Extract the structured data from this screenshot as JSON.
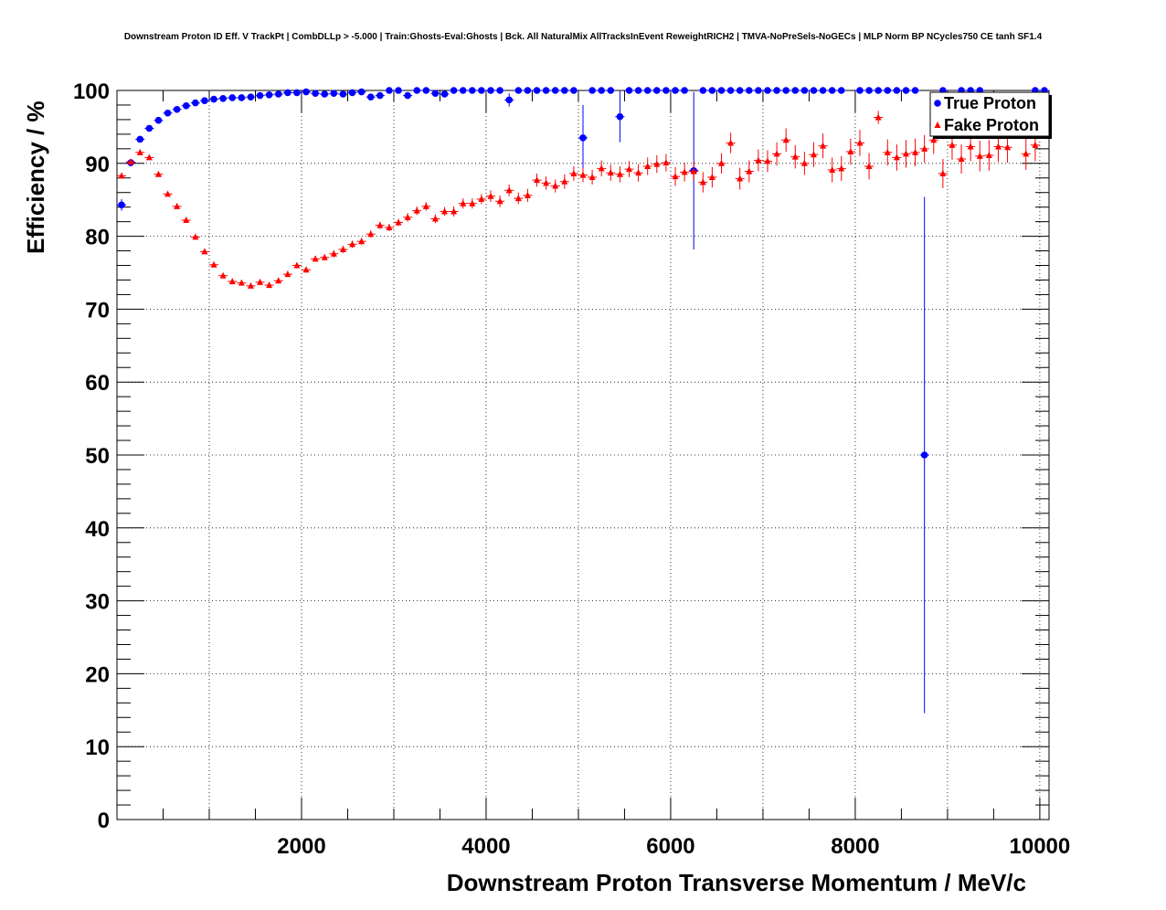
{
  "chart_data": {
    "type": "scatter",
    "title": "Downstream Proton ID Eff. V TrackPt | CombDLLp > -5.000 | Train:Ghosts-Eval:Ghosts | Bck. All NaturalMix AllTracksInEvent ReweightRICH2 | TMVA-NoPreSels-NoGECs | MLP Norm BP NCycles750 CE tanh SF1.4",
    "xlabel": "Downstream Proton Transverse Momentum / MeV/c",
    "ylabel": "Efficiency / %",
    "xlim": [
      0,
      10100
    ],
    "ylim": [
      0,
      100
    ],
    "x_ticks": [
      2000,
      4000,
      6000,
      8000,
      10000
    ],
    "y_ticks": [
      0,
      10,
      20,
      30,
      40,
      50,
      60,
      70,
      80,
      90,
      100
    ],
    "grid": true,
    "legend_position": "top-right",
    "series": [
      {
        "name": "True Proton",
        "color": "#0000ff",
        "marker": "circle",
        "points": [
          {
            "x": 50,
            "y": 84.3,
            "err": 0.8
          },
          {
            "x": 150,
            "y": 90.1,
            "err": 0.5
          },
          {
            "x": 250,
            "y": 93.3,
            "err": 0.4
          },
          {
            "x": 350,
            "y": 94.8,
            "err": 0.3
          },
          {
            "x": 450,
            "y": 95.9,
            "err": 0.3
          },
          {
            "x": 550,
            "y": 96.9,
            "err": 0.3
          },
          {
            "x": 650,
            "y": 97.4,
            "err": 0.3
          },
          {
            "x": 750,
            "y": 97.9,
            "err": 0.3
          },
          {
            "x": 850,
            "y": 98.3,
            "err": 0.2
          },
          {
            "x": 950,
            "y": 98.6,
            "err": 0.2
          },
          {
            "x": 1050,
            "y": 98.8,
            "err": 0.2
          },
          {
            "x": 1150,
            "y": 98.9,
            "err": 0.2
          },
          {
            "x": 1250,
            "y": 99.0,
            "err": 0.2
          },
          {
            "x": 1350,
            "y": 99.0,
            "err": 0.2
          },
          {
            "x": 1450,
            "y": 99.1,
            "err": 0.2
          },
          {
            "x": 1550,
            "y": 99.3,
            "err": 0.2
          },
          {
            "x": 1650,
            "y": 99.4,
            "err": 0.2
          },
          {
            "x": 1750,
            "y": 99.5,
            "err": 0.2
          },
          {
            "x": 1850,
            "y": 99.7,
            "err": 0.2
          },
          {
            "x": 1950,
            "y": 99.7,
            "err": 0.2
          },
          {
            "x": 2050,
            "y": 99.8,
            "err": 0.2
          },
          {
            "x": 2150,
            "y": 99.6,
            "err": 0.2
          },
          {
            "x": 2250,
            "y": 99.5,
            "err": 0.2
          },
          {
            "x": 2350,
            "y": 99.6,
            "err": 0.2
          },
          {
            "x": 2450,
            "y": 99.5,
            "err": 0.2
          },
          {
            "x": 2550,
            "y": 99.7,
            "err": 0.2
          },
          {
            "x": 2650,
            "y": 99.8,
            "err": 0.2
          },
          {
            "x": 2750,
            "y": 99.1,
            "err": 0.3
          },
          {
            "x": 2850,
            "y": 99.3,
            "err": 0.3
          },
          {
            "x": 2950,
            "y": 100.0,
            "err": 0.0
          },
          {
            "x": 3050,
            "y": 100.0,
            "err": 0.0
          },
          {
            "x": 3150,
            "y": 99.3,
            "err": 0.3
          },
          {
            "x": 3250,
            "y": 100.0,
            "err": 0.0
          },
          {
            "x": 3350,
            "y": 100.0,
            "err": 0.0
          },
          {
            "x": 3450,
            "y": 99.6,
            "err": 0.3
          },
          {
            "x": 3550,
            "y": 99.5,
            "err": 0.3
          },
          {
            "x": 3650,
            "y": 100.0,
            "err": 0.0
          },
          {
            "x": 3750,
            "y": 100.0,
            "err": 0.0
          },
          {
            "x": 3850,
            "y": 100.0,
            "err": 0.0
          },
          {
            "x": 3950,
            "y": 100.0,
            "err": 0.0
          },
          {
            "x": 4050,
            "y": 100.0,
            "err": 0.0
          },
          {
            "x": 4150,
            "y": 100.0,
            "err": 0.0
          },
          {
            "x": 4250,
            "y": 98.7,
            "err": 0.9
          },
          {
            "x": 4350,
            "y": 100.0,
            "err": 0.0
          },
          {
            "x": 4450,
            "y": 100.0,
            "err": 0.0
          },
          {
            "x": 4550,
            "y": 100.0,
            "err": 0.0
          },
          {
            "x": 4650,
            "y": 100.0,
            "err": 0.0
          },
          {
            "x": 4750,
            "y": 100.0,
            "err": 0.0
          },
          {
            "x": 4850,
            "y": 100.0,
            "err": 0.0
          },
          {
            "x": 4950,
            "y": 100.0,
            "err": 0.0
          },
          {
            "x": 5050,
            "y": 93.5,
            "err": 4.5
          },
          {
            "x": 5150,
            "y": 100.0,
            "err": 0.0
          },
          {
            "x": 5250,
            "y": 100.0,
            "err": 0.0
          },
          {
            "x": 5350,
            "y": 100.0,
            "err": 0.0
          },
          {
            "x": 5450,
            "y": 96.4,
            "err": 3.5
          },
          {
            "x": 5550,
            "y": 100.0,
            "err": 0.0
          },
          {
            "x": 5650,
            "y": 100.0,
            "err": 0.0
          },
          {
            "x": 5750,
            "y": 100.0,
            "err": 0.0
          },
          {
            "x": 5850,
            "y": 100.0,
            "err": 0.0
          },
          {
            "x": 5950,
            "y": 100.0,
            "err": 0.0
          },
          {
            "x": 6050,
            "y": 100.0,
            "err": 0.0
          },
          {
            "x": 6150,
            "y": 100.0,
            "err": 0.0
          },
          {
            "x": 6250,
            "y": 89.0,
            "err": 10.8
          },
          {
            "x": 6350,
            "y": 100.0,
            "err": 0.0
          },
          {
            "x": 6450,
            "y": 100.0,
            "err": 0.0
          },
          {
            "x": 6550,
            "y": 100.0,
            "err": 0.0
          },
          {
            "x": 6650,
            "y": 100.0,
            "err": 0.0
          },
          {
            "x": 6750,
            "y": 100.0,
            "err": 0.0
          },
          {
            "x": 6850,
            "y": 100.0,
            "err": 0.0
          },
          {
            "x": 6950,
            "y": 100.0,
            "err": 0.0
          },
          {
            "x": 7050,
            "y": 100.0,
            "err": 0.0
          },
          {
            "x": 7150,
            "y": 100.0,
            "err": 0.0
          },
          {
            "x": 7250,
            "y": 100.0,
            "err": 0.0
          },
          {
            "x": 7350,
            "y": 100.0,
            "err": 0.0
          },
          {
            "x": 7450,
            "y": 100.0,
            "err": 0.0
          },
          {
            "x": 7550,
            "y": 100.0,
            "err": 0.0
          },
          {
            "x": 7650,
            "y": 100.0,
            "err": 0.0
          },
          {
            "x": 7750,
            "y": 100.0,
            "err": 0.0
          },
          {
            "x": 7850,
            "y": 100.0,
            "err": 0.0
          },
          {
            "x": 8050,
            "y": 100.0,
            "err": 0.0
          },
          {
            "x": 8150,
            "y": 100.0,
            "err": 0.0
          },
          {
            "x": 8250,
            "y": 100.0,
            "err": 0.0
          },
          {
            "x": 8350,
            "y": 100.0,
            "err": 0.0
          },
          {
            "x": 8450,
            "y": 100.0,
            "err": 0.0
          },
          {
            "x": 8550,
            "y": 100.0,
            "err": 0.0
          },
          {
            "x": 8650,
            "y": 100.0,
            "err": 0.0
          },
          {
            "x": 8750,
            "y": 50.0,
            "err": 35.4
          },
          {
            "x": 8950,
            "y": 100.0,
            "err": 0.0
          },
          {
            "x": 9150,
            "y": 100.0,
            "err": 0.0
          },
          {
            "x": 9250,
            "y": 100.0,
            "err": 0.0
          },
          {
            "x": 9350,
            "y": 100.0,
            "err": 0.0
          },
          {
            "x": 9950,
            "y": 100.0,
            "err": 0.0
          },
          {
            "x": 10050,
            "y": 100.0,
            "err": 0.0
          }
        ]
      },
      {
        "name": "Fake Proton",
        "color": "#ff0000",
        "marker": "triangle",
        "points": [
          {
            "x": 50,
            "y": 88.3,
            "err": 0.3
          },
          {
            "x": 150,
            "y": 90.2,
            "err": 0.3
          },
          {
            "x": 250,
            "y": 91.5,
            "err": 0.3
          },
          {
            "x": 350,
            "y": 90.8,
            "err": 0.3
          },
          {
            "x": 450,
            "y": 88.5,
            "err": 0.3
          },
          {
            "x": 550,
            "y": 85.8,
            "err": 0.3
          },
          {
            "x": 650,
            "y": 84.1,
            "err": 0.3
          },
          {
            "x": 750,
            "y": 82.2,
            "err": 0.3
          },
          {
            "x": 850,
            "y": 79.9,
            "err": 0.3
          },
          {
            "x": 950,
            "y": 77.9,
            "err": 0.3
          },
          {
            "x": 1050,
            "y": 76.1,
            "err": 0.3
          },
          {
            "x": 1150,
            "y": 74.6,
            "err": 0.3
          },
          {
            "x": 1250,
            "y": 73.8,
            "err": 0.3
          },
          {
            "x": 1350,
            "y": 73.6,
            "err": 0.3
          },
          {
            "x": 1450,
            "y": 73.2,
            "err": 0.3
          },
          {
            "x": 1550,
            "y": 73.7,
            "err": 0.3
          },
          {
            "x": 1650,
            "y": 73.3,
            "err": 0.4
          },
          {
            "x": 1750,
            "y": 73.9,
            "err": 0.4
          },
          {
            "x": 1850,
            "y": 74.8,
            "err": 0.4
          },
          {
            "x": 1950,
            "y": 76.0,
            "err": 0.4
          },
          {
            "x": 2050,
            "y": 75.4,
            "err": 0.4
          },
          {
            "x": 2150,
            "y": 76.9,
            "err": 0.4
          },
          {
            "x": 2250,
            "y": 77.1,
            "err": 0.4
          },
          {
            "x": 2350,
            "y": 77.6,
            "err": 0.5
          },
          {
            "x": 2450,
            "y": 78.2,
            "err": 0.5
          },
          {
            "x": 2550,
            "y": 78.9,
            "err": 0.5
          },
          {
            "x": 2650,
            "y": 79.3,
            "err": 0.5
          },
          {
            "x": 2750,
            "y": 80.3,
            "err": 0.5
          },
          {
            "x": 2850,
            "y": 81.5,
            "err": 0.5
          },
          {
            "x": 2950,
            "y": 81.2,
            "err": 0.5
          },
          {
            "x": 3050,
            "y": 81.9,
            "err": 0.5
          },
          {
            "x": 3150,
            "y": 82.6,
            "err": 0.6
          },
          {
            "x": 3250,
            "y": 83.5,
            "err": 0.6
          },
          {
            "x": 3350,
            "y": 84.1,
            "err": 0.6
          },
          {
            "x": 3450,
            "y": 82.4,
            "err": 0.6
          },
          {
            "x": 3550,
            "y": 83.4,
            "err": 0.6
          },
          {
            "x": 3650,
            "y": 83.4,
            "err": 0.7
          },
          {
            "x": 3750,
            "y": 84.5,
            "err": 0.7
          },
          {
            "x": 3850,
            "y": 84.5,
            "err": 0.7
          },
          {
            "x": 3950,
            "y": 85.1,
            "err": 0.7
          },
          {
            "x": 4050,
            "y": 85.5,
            "err": 0.8
          },
          {
            "x": 4150,
            "y": 84.8,
            "err": 0.8
          },
          {
            "x": 4250,
            "y": 86.3,
            "err": 0.8
          },
          {
            "x": 4350,
            "y": 85.2,
            "err": 0.8
          },
          {
            "x": 4450,
            "y": 85.6,
            "err": 0.9
          },
          {
            "x": 4550,
            "y": 87.7,
            "err": 0.9
          },
          {
            "x": 4650,
            "y": 87.3,
            "err": 0.9
          },
          {
            "x": 4750,
            "y": 86.9,
            "err": 0.9
          },
          {
            "x": 4850,
            "y": 87.5,
            "err": 1.0
          },
          {
            "x": 4950,
            "y": 88.6,
            "err": 1.0
          },
          {
            "x": 5050,
            "y": 88.4,
            "err": 1.0
          },
          {
            "x": 5150,
            "y": 88.1,
            "err": 1.0
          },
          {
            "x": 5250,
            "y": 89.3,
            "err": 1.1
          },
          {
            "x": 5350,
            "y": 88.7,
            "err": 1.1
          },
          {
            "x": 5450,
            "y": 88.5,
            "err": 1.1
          },
          {
            "x": 5550,
            "y": 89.2,
            "err": 1.1
          },
          {
            "x": 5650,
            "y": 88.7,
            "err": 1.2
          },
          {
            "x": 5750,
            "y": 89.6,
            "err": 1.2
          },
          {
            "x": 5850,
            "y": 89.9,
            "err": 1.2
          },
          {
            "x": 5950,
            "y": 90.1,
            "err": 1.2
          },
          {
            "x": 6050,
            "y": 88.2,
            "err": 1.3
          },
          {
            "x": 6150,
            "y": 88.8,
            "err": 1.3
          },
          {
            "x": 6250,
            "y": 88.9,
            "err": 1.3
          },
          {
            "x": 6350,
            "y": 87.4,
            "err": 1.4
          },
          {
            "x": 6450,
            "y": 88.1,
            "err": 1.4
          },
          {
            "x": 6550,
            "y": 90.0,
            "err": 1.4
          },
          {
            "x": 6650,
            "y": 92.8,
            "err": 1.4
          },
          {
            "x": 6750,
            "y": 87.9,
            "err": 1.5
          },
          {
            "x": 6850,
            "y": 88.9,
            "err": 1.5
          },
          {
            "x": 6950,
            "y": 90.4,
            "err": 1.5
          },
          {
            "x": 7050,
            "y": 90.3,
            "err": 1.5
          },
          {
            "x": 7150,
            "y": 91.3,
            "err": 1.6
          },
          {
            "x": 7250,
            "y": 93.2,
            "err": 1.6
          },
          {
            "x": 7350,
            "y": 90.9,
            "err": 1.6
          },
          {
            "x": 7450,
            "y": 90.0,
            "err": 1.6
          },
          {
            "x": 7550,
            "y": 91.2,
            "err": 1.7
          },
          {
            "x": 7650,
            "y": 92.4,
            "err": 1.7
          },
          {
            "x": 7750,
            "y": 89.1,
            "err": 1.7
          },
          {
            "x": 7850,
            "y": 89.3,
            "err": 1.7
          },
          {
            "x": 7950,
            "y": 91.6,
            "err": 1.8
          },
          {
            "x": 8050,
            "y": 92.8,
            "err": 1.8
          },
          {
            "x": 8150,
            "y": 89.6,
            "err": 1.8
          },
          {
            "x": 8250,
            "y": 96.3,
            "err": 0.9
          },
          {
            "x": 8350,
            "y": 91.5,
            "err": 1.8
          },
          {
            "x": 8450,
            "y": 90.8,
            "err": 1.8
          },
          {
            "x": 8550,
            "y": 91.3,
            "err": 1.9
          },
          {
            "x": 8650,
            "y": 91.5,
            "err": 1.9
          },
          {
            "x": 8750,
            "y": 92.0,
            "err": 1.9
          },
          {
            "x": 8850,
            "y": 93.2,
            "err": 1.9
          },
          {
            "x": 8950,
            "y": 88.6,
            "err": 2.0
          },
          {
            "x": 9050,
            "y": 92.5,
            "err": 2.0
          },
          {
            "x": 9150,
            "y": 90.6,
            "err": 2.0
          },
          {
            "x": 9250,
            "y": 92.3,
            "err": 2.0
          },
          {
            "x": 9350,
            "y": 91.0,
            "err": 2.1
          },
          {
            "x": 9450,
            "y": 91.1,
            "err": 2.1
          },
          {
            "x": 9550,
            "y": 92.3,
            "err": 2.1
          },
          {
            "x": 9650,
            "y": 92.2,
            "err": 2.1
          },
          {
            "x": 9850,
            "y": 91.3,
            "err": 2.2
          },
          {
            "x": 9950,
            "y": 92.5,
            "err": 2.2
          }
        ]
      }
    ]
  }
}
